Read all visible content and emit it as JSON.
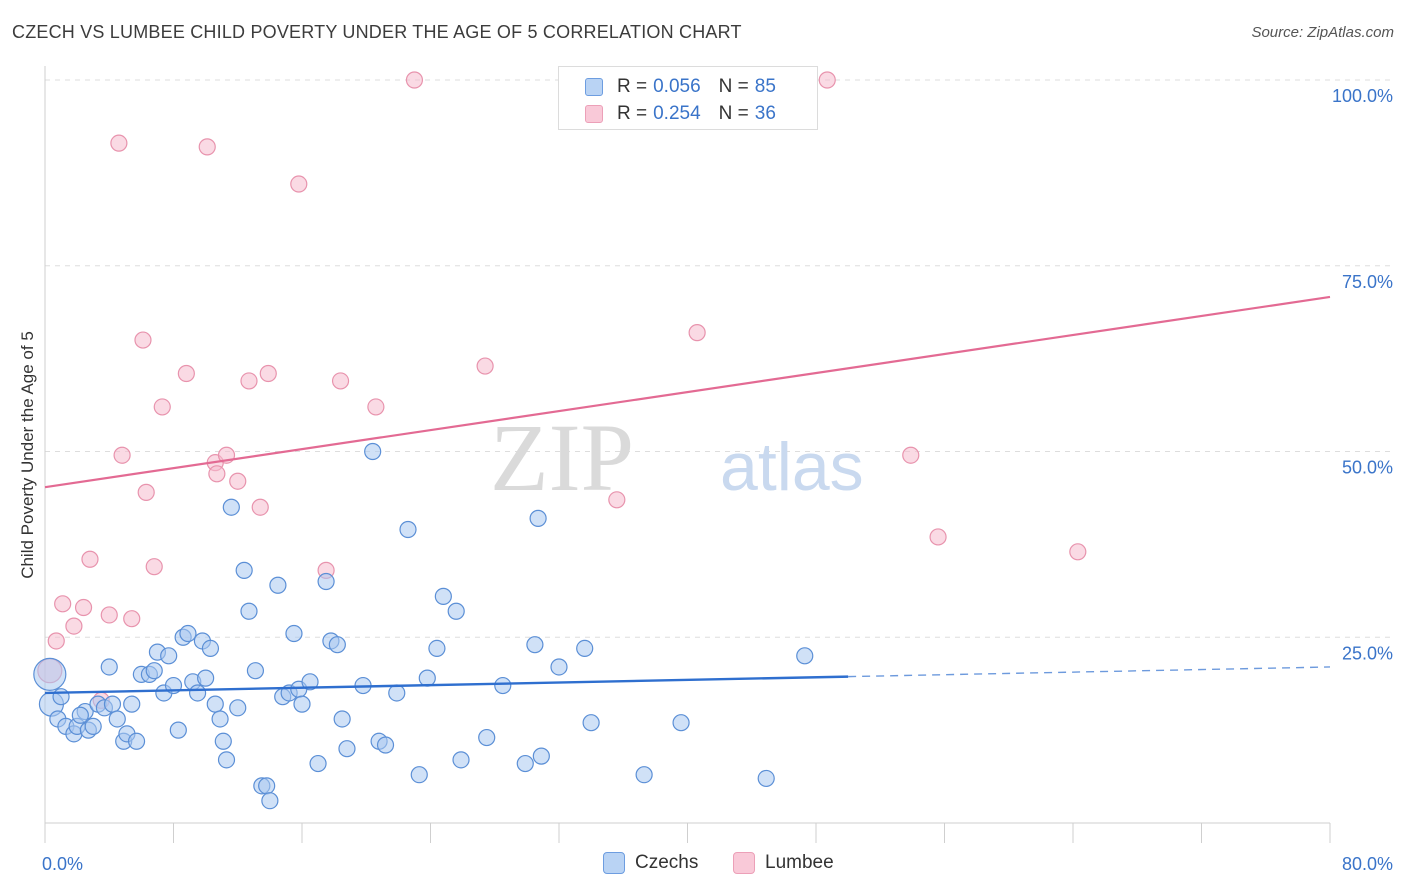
{
  "header": {
    "title": "CZECH VS LUMBEE CHILD POVERTY UNDER THE AGE OF 5 CORRELATION CHART",
    "source": "Source: ZipAtlas.com"
  },
  "legend": {
    "rows": [
      {
        "r_label": "R =",
        "r_value": "0.056",
        "n_label": "N =",
        "n_value": "85"
      },
      {
        "r_label": "R =",
        "r_value": "0.254",
        "n_label": "N =",
        "n_value": "36"
      }
    ],
    "bottom": [
      "Czechs",
      "Lumbee"
    ]
  },
  "watermark": {
    "zip": "ZIP",
    "atlas": "atlas"
  },
  "colors": {
    "czech_fill": "#a9c8f0",
    "czech_stroke": "#5b8fd6",
    "czech_line": "#2f6fcf",
    "lumbee_fill": "#f6bccd",
    "lumbee_stroke": "#e893ad",
    "lumbee_line": "#e36a93",
    "axis_text": "#3a74c9",
    "grid": "#dddddd"
  },
  "chart_data": {
    "type": "scatter",
    "title": "CZECH VS LUMBEE CHILD POVERTY UNDER THE AGE OF 5 CORRELATION CHART",
    "ylabel": "Child Poverty Under the Age of 5",
    "xlabel": "",
    "xlim": [
      0,
      80
    ],
    "ylim": [
      0,
      100
    ],
    "x_tick_labels": [
      "0.0%",
      "80.0%"
    ],
    "y_tick_labels": [
      "25.0%",
      "50.0%",
      "75.0%",
      "100.0%"
    ],
    "y_ticks": [
      25,
      50,
      75,
      100
    ],
    "grid": true,
    "legend_position": "top-center",
    "series": [
      {
        "name": "Czechs",
        "R": 0.056,
        "N": 85,
        "trend": {
          "x0": 0,
          "y0": 17.5,
          "x1": 50,
          "y1": 19.7,
          "dash_to_x": 80,
          "dash_to_y": 21.0
        },
        "points": [
          [
            0.3,
            20.0,
            "big"
          ],
          [
            0.4,
            16.0,
            "mid"
          ],
          [
            0.8,
            14.0
          ],
          [
            1.3,
            13.0
          ],
          [
            1.8,
            12.0
          ],
          [
            2.0,
            13.0
          ],
          [
            2.5,
            15.0
          ],
          [
            2.7,
            12.5
          ],
          [
            3.0,
            13.0
          ],
          [
            3.3,
            16.0
          ],
          [
            3.7,
            15.5
          ],
          [
            4.0,
            21.0
          ],
          [
            4.2,
            16.0
          ],
          [
            4.5,
            14.0
          ],
          [
            4.9,
            11.0
          ],
          [
            5.1,
            12.0
          ],
          [
            5.4,
            16.0
          ],
          [
            5.7,
            11.0
          ],
          [
            6.0,
            20.0
          ],
          [
            6.5,
            20.0
          ],
          [
            6.8,
            20.5
          ],
          [
            7.0,
            23.0
          ],
          [
            7.4,
            17.5
          ],
          [
            7.7,
            22.5
          ],
          [
            8.0,
            18.5
          ],
          [
            8.3,
            12.5
          ],
          [
            8.6,
            25.0
          ],
          [
            8.9,
            25.5
          ],
          [
            9.2,
            19.0
          ],
          [
            9.5,
            17.5
          ],
          [
            9.8,
            24.5
          ],
          [
            10.0,
            19.5
          ],
          [
            10.3,
            23.5
          ],
          [
            10.6,
            16.0
          ],
          [
            10.9,
            14.0
          ],
          [
            11.1,
            11.0
          ],
          [
            11.3,
            8.5
          ],
          [
            11.6,
            42.5
          ],
          [
            12.0,
            15.5
          ],
          [
            12.4,
            34.0
          ],
          [
            12.7,
            28.5
          ],
          [
            13.1,
            20.5
          ],
          [
            13.5,
            5.0
          ],
          [
            13.8,
            5.0
          ],
          [
            14.0,
            3.0
          ],
          [
            14.5,
            32.0
          ],
          [
            14.8,
            17.0
          ],
          [
            15.2,
            17.5
          ],
          [
            15.5,
            25.5
          ],
          [
            15.8,
            18.0
          ],
          [
            16.0,
            16.0
          ],
          [
            16.5,
            19.0
          ],
          [
            17.0,
            8.0
          ],
          [
            17.5,
            32.5
          ],
          [
            17.8,
            24.5
          ],
          [
            18.2,
            24.0
          ],
          [
            18.5,
            14.0
          ],
          [
            18.8,
            10.0
          ],
          [
            19.8,
            18.5
          ],
          [
            20.4,
            50.0
          ],
          [
            20.8,
            11.0
          ],
          [
            21.2,
            10.5
          ],
          [
            21.9,
            17.5
          ],
          [
            22.6,
            39.5
          ],
          [
            23.3,
            6.5
          ],
          [
            23.8,
            19.5
          ],
          [
            24.4,
            23.5
          ],
          [
            24.8,
            30.5
          ],
          [
            25.6,
            28.5
          ],
          [
            25.9,
            8.5
          ],
          [
            27.5,
            11.5
          ],
          [
            28.5,
            18.5
          ],
          [
            29.9,
            8.0
          ],
          [
            30.5,
            24.0
          ],
          [
            30.7,
            41.0
          ],
          [
            30.9,
            9.0
          ],
          [
            32.0,
            21.0
          ],
          [
            33.6,
            23.5
          ],
          [
            34.0,
            13.5
          ],
          [
            37.3,
            6.5
          ],
          [
            39.6,
            13.5
          ],
          [
            44.9,
            6.0
          ],
          [
            47.3,
            22.5
          ],
          [
            1.0,
            17.0
          ],
          [
            2.2,
            14.5
          ]
        ]
      },
      {
        "name": "Lumbee",
        "R": 0.254,
        "N": 36,
        "trend": {
          "x0": 0,
          "y0": 45.2,
          "x1": 80,
          "y1": 70.8
        },
        "points": [
          [
            0.3,
            20.5,
            "mid"
          ],
          [
            0.7,
            24.5
          ],
          [
            1.1,
            29.5
          ],
          [
            1.8,
            26.5
          ],
          [
            2.4,
            29.0
          ],
          [
            2.8,
            35.5
          ],
          [
            4.0,
            28.0
          ],
          [
            4.6,
            91.5
          ],
          [
            4.8,
            49.5
          ],
          [
            5.4,
            27.5
          ],
          [
            6.1,
            65.0
          ],
          [
            6.3,
            44.5
          ],
          [
            6.8,
            34.5
          ],
          [
            7.3,
            56.0
          ],
          [
            8.8,
            60.5
          ],
          [
            10.1,
            91.0
          ],
          [
            10.6,
            48.5
          ],
          [
            10.7,
            47.0
          ],
          [
            11.3,
            49.5
          ],
          [
            12.0,
            46.0
          ],
          [
            12.7,
            59.5
          ],
          [
            13.4,
            42.5
          ],
          [
            13.9,
            60.5
          ],
          [
            15.8,
            86.0
          ],
          [
            17.5,
            34.0
          ],
          [
            18.4,
            59.5
          ],
          [
            20.6,
            56.0
          ],
          [
            23.0,
            100.0
          ],
          [
            27.4,
            61.5
          ],
          [
            35.6,
            43.5
          ],
          [
            40.6,
            66.0
          ],
          [
            48.7,
            100.0
          ],
          [
            53.9,
            49.5
          ],
          [
            55.6,
            38.5
          ],
          [
            64.3,
            36.5
          ],
          [
            3.5,
            16.5
          ]
        ]
      }
    ]
  }
}
